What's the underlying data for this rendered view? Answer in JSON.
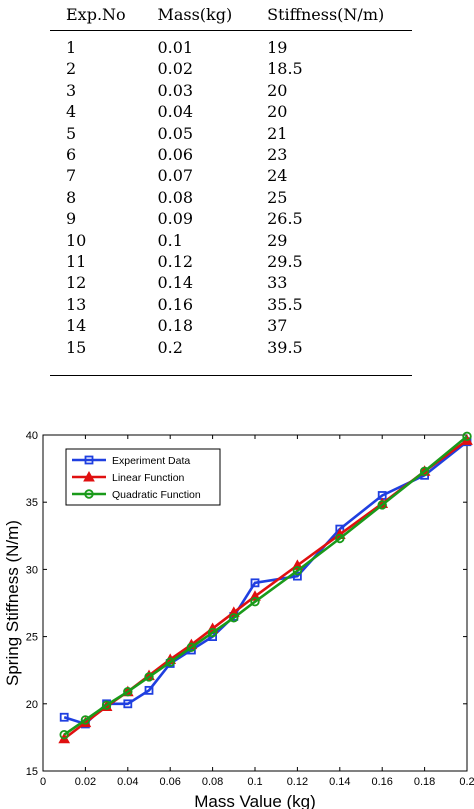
{
  "table": {
    "headers": [
      "Exp.No",
      "Mass(kg)",
      "Stiffness(N/m)"
    ],
    "rows": [
      [
        "1",
        "0.01",
        "19"
      ],
      [
        "2",
        "0.02",
        "18.5"
      ],
      [
        "3",
        "0.03",
        "20"
      ],
      [
        "4",
        "0.04",
        "20"
      ],
      [
        "5",
        "0.05",
        "21"
      ],
      [
        "6",
        "0.06",
        "23"
      ],
      [
        "7",
        "0.07",
        "24"
      ],
      [
        "8",
        "0.08",
        "25"
      ],
      [
        "9",
        "0.09",
        "26.5"
      ],
      [
        "10",
        "0.1",
        "29"
      ],
      [
        "11",
        "0.12",
        "29.5"
      ],
      [
        "12",
        "0.14",
        "33"
      ],
      [
        "13",
        "0.16",
        "35.5"
      ],
      [
        "14",
        "0.18",
        "37"
      ],
      [
        "15",
        "0.2",
        "39.5"
      ]
    ]
  },
  "chart_data": {
    "type": "line",
    "title": "",
    "xlabel": "Mass Value (kg)",
    "ylabel": "Spring Stiffness (N/m)",
    "xlim": [
      0,
      0.2
    ],
    "ylim": [
      15,
      40
    ],
    "x_ticks": [
      "0",
      "0.02",
      "0.04",
      "0.06",
      "0.08",
      "0.1",
      "0.12",
      "0.14",
      "0.16",
      "0.18",
      "0.2"
    ],
    "y_ticks": [
      "15",
      "20",
      "25",
      "30",
      "35",
      "40"
    ],
    "grid": false,
    "legend": "top-left",
    "x": [
      0.01,
      0.02,
      0.03,
      0.04,
      0.05,
      0.06,
      0.07,
      0.08,
      0.09,
      0.1,
      0.12,
      0.14,
      0.16,
      0.18,
      0.2
    ],
    "series": [
      {
        "name": "Experiment Data",
        "color": "#1f3fe0",
        "marker": "square",
        "values": [
          19,
          18.5,
          20,
          20,
          21,
          23,
          24,
          25,
          26.5,
          29,
          29.5,
          33,
          35.5,
          37,
          39.5
        ]
      },
      {
        "name": "Linear Function",
        "color": "#e01010",
        "marker": "triangle",
        "values": [
          17.4,
          18.6,
          19.8,
          20.9,
          22.1,
          23.3,
          24.4,
          25.6,
          26.8,
          28.0,
          30.3,
          32.6,
          34.9,
          37.3,
          39.6
        ]
      },
      {
        "name": "Quadratic Function",
        "color": "#1a9a1a",
        "marker": "circle",
        "values": [
          17.7,
          18.8,
          19.9,
          20.9,
          22.0,
          23.1,
          24.2,
          25.3,
          26.4,
          27.6,
          29.9,
          32.3,
          34.8,
          37.3,
          39.9
        ]
      }
    ]
  }
}
